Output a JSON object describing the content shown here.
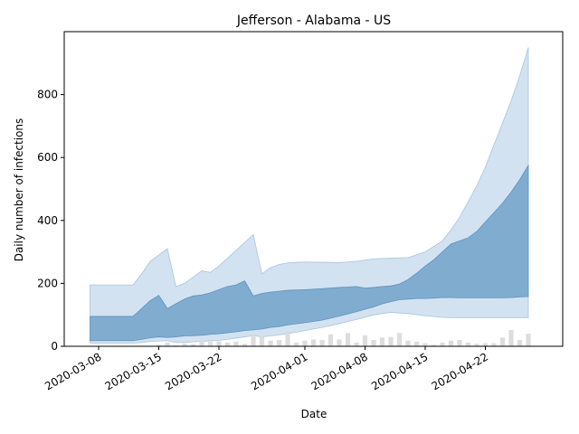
{
  "chart_data": {
    "type": "area",
    "title": "Jefferson - Alabama - US",
    "xlabel": "Date",
    "ylabel": "Daily number of infections",
    "x_range": [
      "2020-03-04",
      "2020-05-01"
    ],
    "ylim": [
      0,
      1000
    ],
    "y_ticks": [
      0,
      200,
      400,
      600,
      800
    ],
    "x_ticks": [
      "2020-03-08",
      "2020-03-15",
      "2020-03-22",
      "2020-04-01",
      "2020-04-08",
      "2020-04-15",
      "2020-04-22"
    ],
    "grid": false,
    "colors": {
      "outer_band": "#d3e2f0",
      "outer_band_edge": "#a9c5e0",
      "inner_band": "#80adcf",
      "inner_band_edge": "#5d93c2",
      "bars": "#d9d9d9"
    },
    "outer_band": {
      "x": [
        "2020-03-07",
        "2020-03-12",
        "2020-03-13",
        "2020-03-14",
        "2020-03-16",
        "2020-03-17",
        "2020-03-18",
        "2020-03-19",
        "2020-03-20",
        "2020-03-21",
        "2020-03-22",
        "2020-03-23",
        "2020-03-24",
        "2020-03-25",
        "2020-03-26",
        "2020-03-27",
        "2020-03-28",
        "2020-03-29",
        "2020-03-30",
        "2020-03-31",
        "2020-04-01",
        "2020-04-03",
        "2020-04-05",
        "2020-04-07",
        "2020-04-09",
        "2020-04-11",
        "2020-04-13",
        "2020-04-15",
        "2020-04-17",
        "2020-04-18",
        "2020-04-19",
        "2020-04-20",
        "2020-04-21",
        "2020-04-22",
        "2020-04-23",
        "2020-04-24",
        "2020-04-25",
        "2020-04-26",
        "2020-04-27"
      ],
      "upper": [
        195,
        195,
        230,
        270,
        310,
        190,
        200,
        220,
        240,
        235,
        255,
        280,
        305,
        330,
        355,
        230,
        250,
        260,
        265,
        267,
        268,
        267,
        266,
        270,
        278,
        280,
        282,
        300,
        335,
        370,
        410,
        460,
        510,
        570,
        640,
        710,
        780,
        860,
        950
      ],
      "lower": [
        10,
        10,
        12,
        15,
        18,
        12,
        12,
        14,
        16,
        17,
        19,
        22,
        26,
        30,
        34,
        30,
        33,
        36,
        40,
        45,
        50,
        60,
        72,
        85,
        100,
        108,
        104,
        97,
        92,
        91,
        91,
        91,
        91,
        91,
        91,
        91,
        91,
        91,
        91
      ]
    },
    "inner_band": {
      "x": [
        "2020-03-07",
        "2020-03-12",
        "2020-03-13",
        "2020-03-14",
        "2020-03-15",
        "2020-03-16",
        "2020-03-17",
        "2020-03-18",
        "2020-03-19",
        "2020-03-20",
        "2020-03-21",
        "2020-03-22",
        "2020-03-23",
        "2020-03-24",
        "2020-03-25",
        "2020-03-26",
        "2020-03-27",
        "2020-03-28",
        "2020-03-29",
        "2020-03-30",
        "2020-04-01",
        "2020-04-03",
        "2020-04-05",
        "2020-04-07",
        "2020-04-08",
        "2020-04-09",
        "2020-04-10",
        "2020-04-11",
        "2020-04-12",
        "2020-04-13",
        "2020-04-14",
        "2020-04-15",
        "2020-04-16",
        "2020-04-17",
        "2020-04-18",
        "2020-04-19",
        "2020-04-20",
        "2020-04-21",
        "2020-04-22",
        "2020-04-23",
        "2020-04-24",
        "2020-04-25",
        "2020-04-26",
        "2020-04-27"
      ],
      "upper": [
        95,
        95,
        120,
        145,
        162,
        120,
        135,
        150,
        160,
        163,
        170,
        180,
        190,
        195,
        208,
        160,
        168,
        172,
        175,
        178,
        180,
        183,
        187,
        190,
        185,
        187,
        190,
        192,
        198,
        212,
        232,
        255,
        275,
        300,
        325,
        335,
        345,
        365,
        395,
        425,
        455,
        490,
        530,
        575
      ],
      "lower": [
        18,
        18,
        22,
        27,
        30,
        28,
        30,
        33,
        34,
        35,
        38,
        40,
        43,
        46,
        50,
        52,
        55,
        60,
        63,
        68,
        75,
        83,
        96,
        110,
        118,
        125,
        135,
        142,
        148,
        150,
        152,
        152,
        153,
        155,
        155,
        154,
        154,
        154,
        154,
        154,
        154,
        155,
        157,
        158
      ]
    },
    "daily_cases": {
      "x": [
        "2020-03-15",
        "2020-03-16",
        "2020-03-17",
        "2020-03-18",
        "2020-03-19",
        "2020-03-20",
        "2020-03-21",
        "2020-03-22",
        "2020-03-23",
        "2020-03-24",
        "2020-03-25",
        "2020-03-26",
        "2020-03-27",
        "2020-03-28",
        "2020-03-29",
        "2020-03-30",
        "2020-03-31",
        "2020-04-01",
        "2020-04-02",
        "2020-04-03",
        "2020-04-04",
        "2020-04-05",
        "2020-04-06",
        "2020-04-07",
        "2020-04-08",
        "2020-04-09",
        "2020-04-10",
        "2020-04-11",
        "2020-04-12",
        "2020-04-13",
        "2020-04-14",
        "2020-04-15",
        "2020-04-16",
        "2020-04-17",
        "2020-04-18",
        "2020-04-19",
        "2020-04-20",
        "2020-04-21",
        "2020-04-22",
        "2020-04-23",
        "2020-04-24",
        "2020-04-25",
        "2020-04-26",
        "2020-04-27"
      ],
      "values": [
        5,
        12,
        3,
        8,
        7,
        18,
        14,
        16,
        12,
        15,
        8,
        38,
        32,
        18,
        20,
        48,
        12,
        18,
        22,
        20,
        38,
        22,
        42,
        12,
        35,
        20,
        28,
        30,
        42,
        18,
        15,
        10,
        5,
        12,
        18,
        20,
        12,
        8,
        10,
        10,
        28,
        52,
        20,
        40
      ]
    }
  }
}
